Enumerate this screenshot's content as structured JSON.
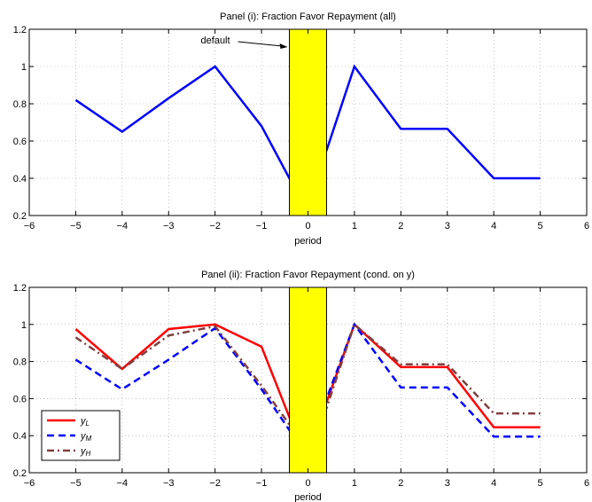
{
  "chart_data": [
    {
      "type": "line",
      "title": "Panel (i): Fraction Favor Repayment (all)",
      "xlabel": "period",
      "ylabel": "",
      "xlim": [
        -6,
        6
      ],
      "ylim": [
        0.2,
        1.2
      ],
      "xticks": [
        -6,
        -5,
        -4,
        -3,
        -2,
        -1,
        0,
        1,
        2,
        3,
        4,
        5,
        6
      ],
      "yticks": [
        0.2,
        0.4,
        0.6,
        0.8,
        1.0,
        1.2
      ],
      "xtick_labels": [
        "−6",
        "−5",
        "−4",
        "−3",
        "−2",
        "−1",
        "0",
        "1",
        "2",
        "3",
        "4",
        "5",
        "6"
      ],
      "ytick_labels": [
        "0.2",
        "0.4",
        "0.6",
        "0.8",
        "1",
        "1.2"
      ],
      "grid": true,
      "shaded_region": {
        "x": [
          -0.4,
          0.4
        ],
        "color": "#ffff00"
      },
      "annotation": {
        "text": "default",
        "arrow_to": {
          "x": -0.4,
          "y": 1.1
        }
      },
      "series": [
        {
          "color": "#0000ff",
          "style": "solid",
          "x": [
            -5,
            -4,
            -3,
            -2,
            -1,
            -0.4,
            0.4,
            1,
            2,
            3,
            4,
            5
          ],
          "y": [
            0.82,
            0.65,
            0.83,
            1.0,
            0.68,
            0.4,
            0.55,
            1.0,
            0.665,
            0.665,
            0.4,
            0.4
          ]
        }
      ]
    },
    {
      "type": "line",
      "title": "Panel (ii): Fraction Favor Repayment (cond. on y)",
      "xlabel": "period",
      "ylabel": "",
      "xlim": [
        -6,
        6
      ],
      "ylim": [
        0.2,
        1.2
      ],
      "xticks": [
        -6,
        -5,
        -4,
        -3,
        -2,
        -1,
        0,
        1,
        2,
        3,
        4,
        5,
        6
      ],
      "yticks": [
        0.2,
        0.4,
        0.6,
        0.8,
        1.0,
        1.2
      ],
      "xtick_labels": [
        "−6",
        "−5",
        "−4",
        "−3",
        "−2",
        "−1",
        "0",
        "1",
        "2",
        "3",
        "4",
        "5",
        "6"
      ],
      "ytick_labels": [
        "0.2",
        "0.4",
        "0.6",
        "0.8",
        "1",
        "1.2"
      ],
      "grid": true,
      "legend_position": "bottom-left",
      "shaded_region": {
        "x": [
          -0.4,
          0.4
        ],
        "color": "#ffff00"
      },
      "series": [
        {
          "name": "yL",
          "color": "#ff0000",
          "style": "solid",
          "x": [
            -5,
            -4,
            -3,
            -2,
            -1,
            -0.4,
            0.4,
            1,
            2,
            3,
            4,
            5
          ],
          "y": [
            0.975,
            0.76,
            0.975,
            1.0,
            0.88,
            0.5,
            0.58,
            1.0,
            0.77,
            0.77,
            0.445,
            0.445
          ]
        },
        {
          "name": "yM",
          "color": "#0000ff",
          "style": "dashed",
          "x": [
            -5,
            -4,
            -3,
            -2,
            -1,
            -0.4,
            0.4,
            1,
            2,
            3,
            4,
            5
          ],
          "y": [
            0.81,
            0.65,
            0.81,
            0.98,
            0.65,
            0.43,
            0.6,
            1.0,
            0.66,
            0.66,
            0.395,
            0.395
          ]
        },
        {
          "name": "yH",
          "color": "#7f3f3f",
          "style": "dashdot",
          "x": [
            -5,
            -4,
            -3,
            -2,
            -1,
            -0.4,
            0.4,
            1,
            2,
            3,
            4,
            5
          ],
          "y": [
            0.93,
            0.76,
            0.94,
            0.99,
            0.67,
            0.46,
            0.55,
            1.0,
            0.785,
            0.785,
            0.52,
            0.52
          ]
        }
      ]
    }
  ]
}
